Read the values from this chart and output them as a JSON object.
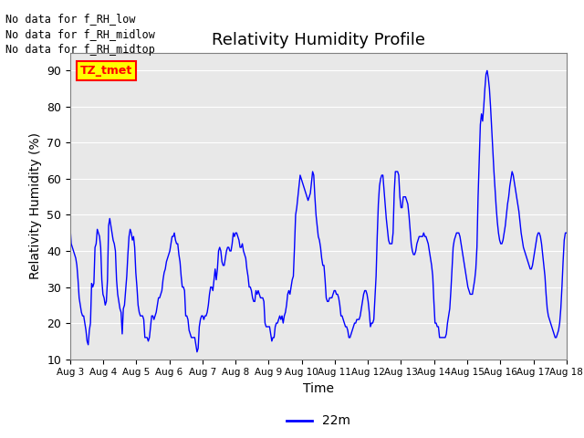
{
  "title": "Relativity Humidity Profile",
  "xlabel": "Time",
  "ylabel": "Relativity Humidity (%)",
  "ylim": [
    10,
    95
  ],
  "yticks": [
    10,
    20,
    30,
    40,
    50,
    60,
    70,
    80,
    90
  ],
  "xtick_labels": [
    "Aug 3",
    "Aug 4",
    "Aug 5",
    "Aug 6",
    "Aug 7",
    "Aug 8",
    "Aug 9",
    "Aug 10",
    "Aug 11",
    "Aug 12",
    "Aug 13",
    "Aug 14",
    "Aug 15",
    "Aug 16",
    "Aug 17",
    "Aug 18"
  ],
  "line_color": "blue",
  "line_label": "22m",
  "annotation_lines": [
    "No data for f_RH_low",
    "No data for f_RH_midlow",
    "No data for f_RH_midtop"
  ],
  "tz_label": "TZ_tmet",
  "bg_color": "#e8e8e8",
  "y_values": [
    47,
    42,
    41,
    40,
    39,
    38,
    36,
    32,
    27,
    25,
    23,
    22,
    22,
    20,
    18,
    15,
    14,
    18,
    20,
    31,
    30,
    31,
    41,
    42,
    46,
    45,
    44,
    41,
    32,
    28,
    27,
    25,
    26,
    32,
    47,
    49,
    47,
    45,
    43,
    42,
    40,
    32,
    28,
    26,
    24,
    23,
    17,
    24,
    25,
    29,
    33,
    39,
    44,
    46,
    45,
    43,
    44,
    41,
    34,
    30,
    25,
    23,
    22,
    22,
    22,
    21,
    16,
    16,
    16,
    15,
    16,
    19,
    22,
    22,
    21,
    22,
    23,
    25,
    27,
    27,
    28,
    29,
    32,
    34,
    35,
    37,
    38,
    39,
    40,
    42,
    44,
    44,
    45,
    43,
    42,
    42,
    39,
    37,
    33,
    30,
    30,
    29,
    22,
    22,
    21,
    18,
    17,
    16,
    16,
    16,
    16,
    14,
    12,
    13,
    19,
    21,
    22,
    22,
    21,
    22,
    22,
    23,
    25,
    28,
    30,
    30,
    29,
    32,
    35,
    32,
    35,
    40,
    41,
    40,
    37,
    36,
    36,
    38,
    40,
    41,
    41,
    40,
    40,
    42,
    45,
    44,
    45,
    45,
    44,
    43,
    41,
    41,
    42,
    40,
    39,
    38,
    35,
    33,
    30,
    30,
    29,
    27,
    26,
    26,
    29,
    28,
    29,
    28,
    27,
    27,
    27,
    26,
    20,
    19,
    19,
    19,
    19,
    17,
    15,
    16,
    16,
    19,
    20,
    20,
    21,
    22,
    21,
    22,
    20,
    22,
    23,
    25,
    28,
    29,
    28,
    30,
    32,
    33,
    41,
    50,
    52,
    55,
    58,
    61,
    60,
    59,
    58,
    57,
    56,
    55,
    54,
    55,
    56,
    59,
    62,
    61,
    55,
    50,
    47,
    44,
    43,
    41,
    38,
    36,
    36,
    32,
    27,
    26,
    26,
    27,
    27,
    27,
    28,
    29,
    29,
    28,
    28,
    27,
    25,
    22,
    22,
    21,
    20,
    19,
    19,
    18,
    16,
    16,
    17,
    18,
    19,
    20,
    20,
    21,
    21,
    21,
    22,
    24,
    26,
    28,
    29,
    29,
    28,
    26,
    23,
    19,
    20,
    20,
    21,
    27,
    33,
    44,
    53,
    58,
    60,
    61,
    61,
    57,
    53,
    49,
    46,
    43,
    42,
    42,
    42,
    45,
    56,
    62,
    62,
    62,
    61,
    55,
    52,
    52,
    55,
    55,
    55,
    54,
    53,
    50,
    46,
    42,
    40,
    39,
    39,
    40,
    42,
    43,
    44,
    44,
    44,
    44,
    45,
    44,
    44,
    43,
    42,
    40,
    38,
    36,
    33,
    26,
    20,
    20,
    19,
    19,
    16,
    16,
    16,
    16,
    16,
    16,
    17,
    20,
    22,
    24,
    29,
    35,
    41,
    43,
    44,
    45,
    45,
    45,
    44,
    42,
    40,
    38,
    36,
    34,
    32,
    30,
    29,
    28,
    28,
    28,
    30,
    32,
    35,
    41,
    55,
    65,
    75,
    78,
    76,
    80,
    85,
    89,
    90,
    88,
    85,
    80,
    74,
    68,
    62,
    57,
    52,
    48,
    45,
    43,
    42,
    42,
    43,
    45,
    47,
    50,
    53,
    55,
    58,
    60,
    62,
    61,
    59,
    57,
    55,
    53,
    51,
    48,
    45,
    43,
    41,
    40,
    39,
    38,
    37,
    36,
    35,
    35,
    36,
    38,
    40,
    42,
    44,
    45,
    45,
    44,
    42,
    39,
    36,
    33,
    28,
    24,
    22,
    21,
    20,
    19,
    18,
    17,
    16,
    16,
    17,
    18,
    20,
    24,
    30,
    37,
    43,
    45,
    45
  ]
}
